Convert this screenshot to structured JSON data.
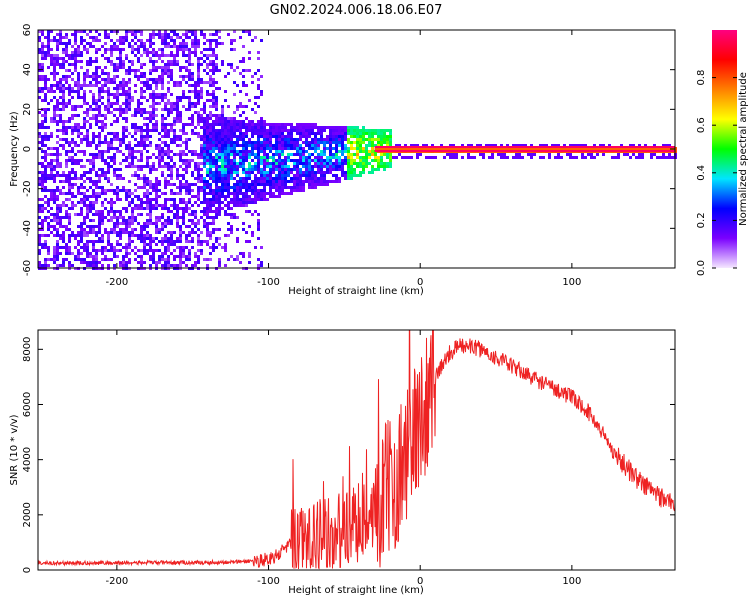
{
  "title": "GN02.2024.006.18.06.E07",
  "chart_data": [
    {
      "type": "heatmap",
      "xlabel": "Height of straight line (km)",
      "ylabel": "Frequency (Hz)",
      "xlim": [
        -252,
        168
      ],
      "ylim": [
        -60,
        60
      ],
      "x_ticks": [
        -200,
        -100,
        0,
        100
      ],
      "y_ticks": [
        -60,
        -40,
        -20,
        0,
        20,
        40,
        60
      ],
      "colorbar": {
        "label": "Normalized spectral amplitude",
        "range": [
          0.0,
          1.0
        ],
        "ticks": [
          0.0,
          0.2,
          0.4,
          0.6,
          0.8
        ],
        "colors": [
          "#f5e8ff",
          "#7a00ff",
          "#0000ff",
          "#00e5ff",
          "#00ff00",
          "#ffff00",
          "#ff8000",
          "#ff0000",
          "#ff0080"
        ]
      },
      "features": {
        "noise_region_x": [
          -252,
          -105
        ],
        "signal_band_hz": 0,
        "signal_band_start_x": -30,
        "spread_region_x": [
          -145,
          -20
        ]
      }
    },
    {
      "type": "line",
      "xlabel": "Height of straight line (km)",
      "ylabel": "SNR (10 * v/v)",
      "xlim": [
        -252,
        168
      ],
      "ylim": [
        0,
        8700
      ],
      "x_ticks": [
        -200,
        -100,
        0,
        100
      ],
      "y_ticks": [
        0,
        2000,
        4000,
        6000,
        8000
      ],
      "color": "#ee2222",
      "series": [
        {
          "x": [
            -252,
            -230,
            -200,
            -170,
            -140,
            -120,
            -105,
            -95,
            -88,
            -80,
            -70,
            -60,
            -50,
            -40,
            -35,
            -30,
            -25,
            -20,
            -15,
            -10,
            -5,
            0,
            5,
            10,
            15,
            20,
            25,
            30,
            40,
            50,
            60,
            70,
            80,
            90,
            100,
            110,
            115,
            120,
            125,
            130,
            135,
            140,
            145,
            150,
            155,
            160,
            168
          ],
          "y": [
            250,
            250,
            260,
            270,
            270,
            300,
            350,
            500,
            800,
            1000,
            1200,
            1300,
            1450,
            1700,
            2000,
            2300,
            2600,
            3000,
            3500,
            4000,
            4700,
            5500,
            6300,
            7000,
            7500,
            7900,
            8100,
            8150,
            8000,
            7700,
            7400,
            7100,
            6800,
            6550,
            6250,
            5800,
            5400,
            5000,
            4500,
            4100,
            3800,
            3500,
            3200,
            3000,
            2800,
            2600,
            2400
          ]
        }
      ]
    }
  ]
}
